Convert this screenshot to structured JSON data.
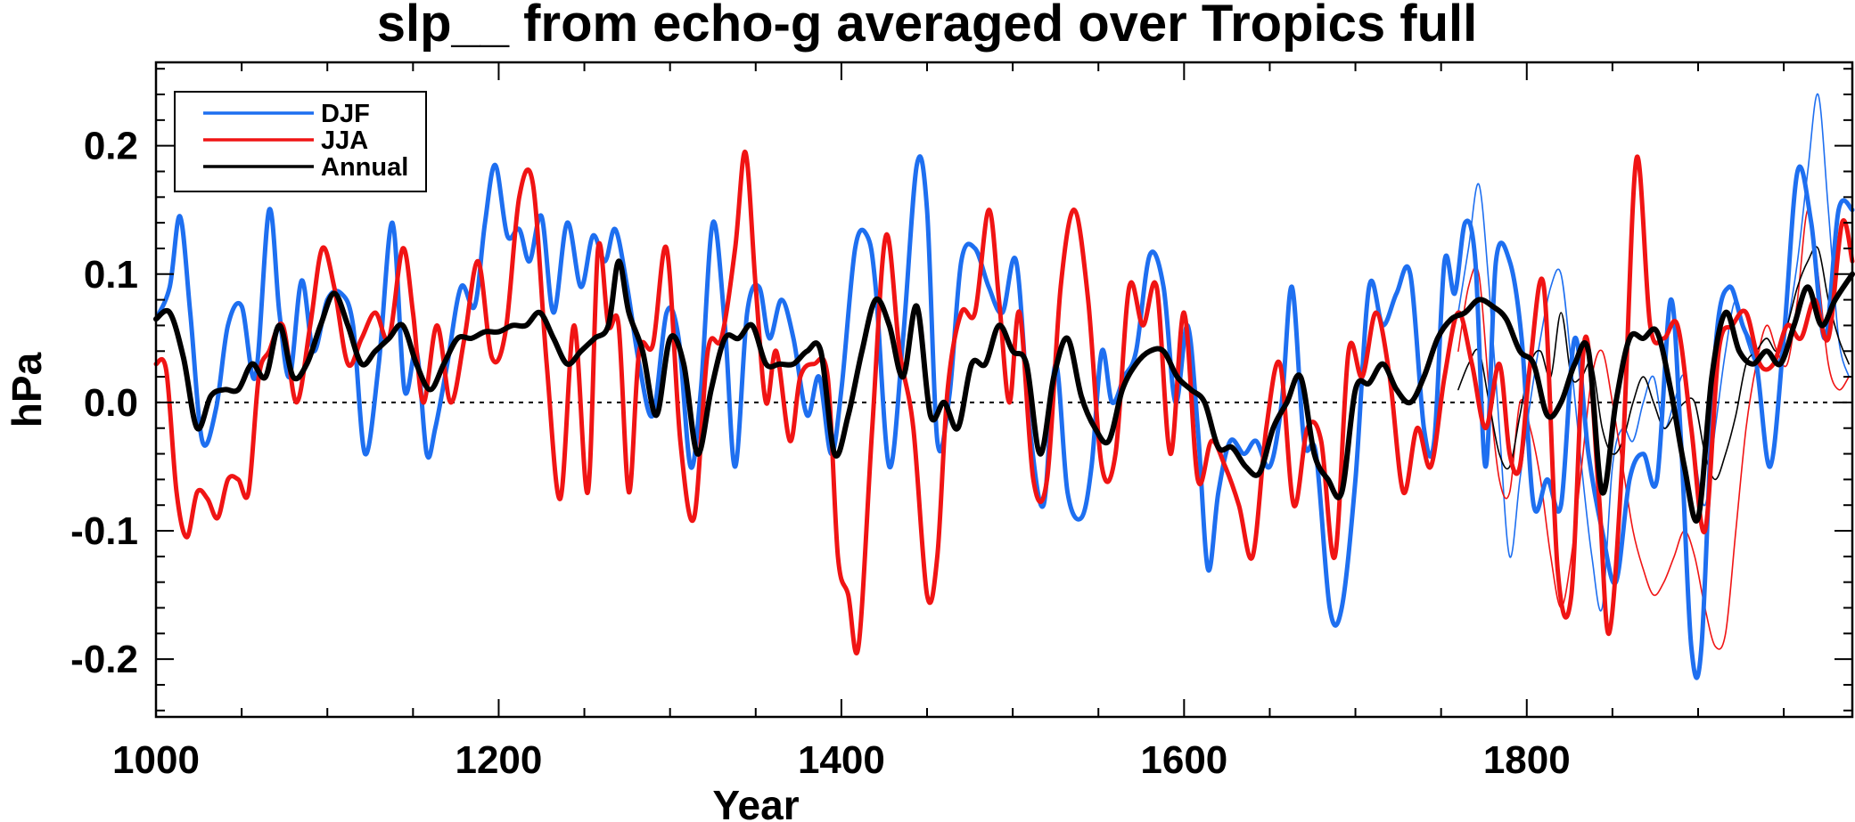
{
  "chart_data": {
    "type": "line",
    "title": "slp__ from echo-g averaged over Tropics full",
    "xlabel": "Year",
    "ylabel": "hPa",
    "xlim": [
      1000,
      1990
    ],
    "ylim": [
      -0.245,
      0.265
    ],
    "xticks": [
      1000,
      1200,
      1400,
      1600,
      1800
    ],
    "xtick_labels": [
      "1000",
      "1200",
      "1400",
      "1600",
      "1800"
    ],
    "yticks": [
      -0.2,
      -0.1,
      0.0,
      0.1,
      0.2
    ],
    "ytick_labels": [
      "-0.2",
      "-0.1",
      "0.0",
      "0.1",
      "0.2"
    ],
    "zero_line": 0.0,
    "legend_position": "top-left",
    "colors": {
      "DJF": "#1e6ff0",
      "JJA": "#f01414",
      "Annual": "#000000"
    },
    "series": [
      {
        "name": "DJF",
        "x": [
          1000,
          1008,
          1014,
          1020,
          1027,
          1035,
          1042,
          1050,
          1058,
          1066,
          1072,
          1078,
          1085,
          1092,
          1100,
          1108,
          1115,
          1122,
          1130,
          1138,
          1145,
          1152,
          1158,
          1163,
          1170,
          1178,
          1186,
          1192,
          1198,
          1205,
          1212,
          1218,
          1225,
          1232,
          1240,
          1248,
          1255,
          1262,
          1268,
          1275,
          1282,
          1290,
          1298,
          1305,
          1312,
          1318,
          1325,
          1332,
          1338,
          1345,
          1352,
          1358,
          1365,
          1372,
          1380,
          1387,
          1394,
          1400,
          1408,
          1415,
          1420,
          1428,
          1436,
          1444,
          1450,
          1456,
          1463,
          1470,
          1478,
          1486,
          1494,
          1502,
          1510,
          1518,
          1525,
          1532,
          1540,
          1546,
          1552,
          1558,
          1565,
          1572,
          1580,
          1588,
          1595,
          1602,
          1608,
          1614,
          1620,
          1627,
          1635,
          1642,
          1650,
          1657,
          1663,
          1670,
          1677,
          1685,
          1692,
          1700,
          1708,
          1716,
          1724,
          1732,
          1740,
          1746,
          1752,
          1758,
          1764,
          1770,
          1776,
          1782,
          1790,
          1797,
          1804,
          1812,
          1820,
          1828,
          1836,
          1844,
          1852,
          1860,
          1868,
          1876,
          1884,
          1890,
          1896,
          1902,
          1910,
          1918,
          1926,
          1934,
          1942,
          1950,
          1958,
          1966,
          1974,
          1982,
          1990
        ],
        "values": [
          0.065,
          0.09,
          0.145,
          0.07,
          -0.03,
          -0.005,
          0.06,
          0.075,
          0.02,
          0.15,
          0.07,
          0.02,
          0.095,
          0.04,
          0.08,
          0.085,
          0.06,
          -0.04,
          0.03,
          0.14,
          0.01,
          0.04,
          -0.04,
          -0.02,
          0.03,
          0.09,
          0.075,
          0.14,
          0.185,
          0.13,
          0.135,
          0.11,
          0.145,
          0.07,
          0.14,
          0.09,
          0.13,
          0.11,
          0.135,
          0.09,
          0.03,
          -0.01,
          0.07,
          0.05,
          -0.05,
          0.01,
          0.14,
          0.06,
          -0.05,
          0.07,
          0.09,
          0.05,
          0.08,
          0.05,
          -0.01,
          0.02,
          -0.04,
          0.01,
          0.12,
          0.13,
          0.09,
          -0.05,
          0.05,
          0.185,
          0.15,
          -0.03,
          0.005,
          0.11,
          0.12,
          0.09,
          0.07,
          0.11,
          -0.02,
          -0.08,
          0.03,
          -0.07,
          -0.09,
          -0.05,
          0.04,
          0.0,
          0.02,
          0.04,
          0.115,
          0.09,
          0.0,
          0.06,
          -0.02,
          -0.13,
          -0.07,
          -0.03,
          -0.04,
          -0.03,
          -0.05,
          0.0,
          0.09,
          -0.03,
          -0.04,
          -0.16,
          -0.16,
          -0.06,
          0.09,
          0.06,
          0.085,
          0.1,
          -0.02,
          -0.03,
          0.11,
          0.085,
          0.14,
          0.11,
          -0.05,
          0.11,
          0.11,
          0.05,
          -0.08,
          -0.06,
          -0.08,
          0.05,
          -0.04,
          -0.1,
          -0.14,
          -0.06,
          -0.04,
          -0.06,
          0.08,
          -0.03,
          -0.19,
          -0.19,
          0.04,
          0.09,
          0.06,
          0.03,
          -0.05,
          0.05,
          0.18,
          0.14,
          0.05,
          0.15,
          0.15
        ]
      },
      {
        "name": "JJA",
        "x": [
          1000,
          1006,
          1012,
          1018,
          1024,
          1030,
          1036,
          1042,
          1048,
          1054,
          1060,
          1066,
          1074,
          1082,
          1090,
          1097,
          1104,
          1112,
          1120,
          1128,
          1136,
          1144,
          1150,
          1156,
          1164,
          1172,
          1180,
          1188,
          1196,
          1204,
          1212,
          1220,
          1228,
          1236,
          1244,
          1252,
          1258,
          1264,
          1270,
          1276,
          1282,
          1290,
          1298,
          1306,
          1314,
          1322,
          1330,
          1338,
          1344,
          1350,
          1356,
          1362,
          1370,
          1376,
          1384,
          1392,
          1398,
          1404,
          1410,
          1418,
          1426,
          1434,
          1442,
          1450,
          1456,
          1462,
          1470,
          1478,
          1486,
          1492,
          1498,
          1504,
          1512,
          1520,
          1528,
          1536,
          1544,
          1552,
          1560,
          1568,
          1576,
          1584,
          1592,
          1600,
          1608,
          1616,
          1624,
          1632,
          1640,
          1648,
          1656,
          1664,
          1672,
          1680,
          1688,
          1696,
          1704,
          1712,
          1720,
          1728,
          1736,
          1744,
          1752,
          1760,
          1768,
          1776,
          1784,
          1790,
          1796,
          1802,
          1810,
          1818,
          1826,
          1834,
          1842,
          1848,
          1856,
          1864,
          1872,
          1880,
          1888,
          1896,
          1904,
          1912,
          1920,
          1928,
          1936,
          1944,
          1952,
          1960,
          1968,
          1976,
          1984,
          1990
        ],
        "values": [
          0.03,
          0.025,
          -0.07,
          -0.105,
          -0.07,
          -0.075,
          -0.09,
          -0.06,
          -0.06,
          -0.07,
          0.02,
          0.04,
          0.06,
          0.0,
          0.06,
          0.12,
          0.09,
          0.03,
          0.05,
          0.07,
          0.05,
          0.12,
          0.07,
          0.0,
          0.06,
          0.0,
          0.05,
          0.11,
          0.035,
          0.055,
          0.16,
          0.17,
          0.03,
          -0.075,
          0.06,
          -0.07,
          0.12,
          0.06,
          0.06,
          -0.07,
          0.04,
          0.045,
          0.12,
          -0.03,
          -0.09,
          0.04,
          0.05,
          0.12,
          0.195,
          0.09,
          0.0,
          0.04,
          -0.03,
          0.02,
          0.03,
          0.02,
          -0.12,
          -0.15,
          -0.19,
          -0.02,
          0.13,
          0.04,
          -0.02,
          -0.15,
          -0.12,
          0.01,
          0.07,
          0.07,
          0.15,
          0.08,
          0.0,
          0.07,
          -0.06,
          -0.06,
          0.09,
          0.15,
          0.08,
          -0.05,
          -0.04,
          0.09,
          0.06,
          0.09,
          -0.04,
          0.07,
          -0.06,
          -0.03,
          -0.05,
          -0.08,
          -0.12,
          -0.02,
          0.03,
          -0.08,
          -0.02,
          -0.03,
          -0.12,
          0.04,
          0.02,
          0.07,
          0.02,
          -0.07,
          -0.02,
          -0.05,
          0.02,
          0.07,
          0.03,
          -0.02,
          0.03,
          -0.04,
          -0.05,
          0.03,
          0.09,
          -0.13,
          -0.15,
          0.05,
          -0.07,
          -0.18,
          -0.04,
          0.19,
          0.06,
          0.05,
          0.06,
          -0.02,
          -0.1,
          0.04,
          0.06,
          0.07,
          0.03,
          0.03,
          0.06,
          0.05,
          0.08,
          0.05,
          0.14,
          0.11
        ]
      },
      {
        "name": "Annual",
        "x": [
          1000,
          1008,
          1016,
          1024,
          1032,
          1040,
          1048,
          1056,
          1064,
          1072,
          1080,
          1088,
          1096,
          1104,
          1112,
          1120,
          1128,
          1136,
          1144,
          1152,
          1160,
          1168,
          1176,
          1184,
          1192,
          1200,
          1208,
          1216,
          1224,
          1232,
          1240,
          1248,
          1256,
          1264,
          1270,
          1276,
          1284,
          1292,
          1300,
          1308,
          1316,
          1324,
          1332,
          1340,
          1348,
          1356,
          1364,
          1372,
          1380,
          1388,
          1396,
          1404,
          1412,
          1420,
          1428,
          1436,
          1444,
          1452,
          1460,
          1468,
          1476,
          1484,
          1492,
          1500,
          1508,
          1516,
          1524,
          1532,
          1540,
          1548,
          1556,
          1564,
          1572,
          1580,
          1588,
          1596,
          1604,
          1612,
          1620,
          1628,
          1636,
          1644,
          1652,
          1660,
          1668,
          1676,
          1684,
          1692,
          1700,
          1708,
          1716,
          1724,
          1732,
          1740,
          1748,
          1756,
          1764,
          1772,
          1780,
          1788,
          1796,
          1804,
          1812,
          1820,
          1828,
          1836,
          1844,
          1852,
          1860,
          1868,
          1876,
          1884,
          1892,
          1900,
          1908,
          1916,
          1924,
          1932,
          1940,
          1948,
          1956,
          1964,
          1972,
          1980,
          1990
        ],
        "values": [
          0.065,
          0.07,
          0.035,
          -0.02,
          0.005,
          0.01,
          0.01,
          0.03,
          0.02,
          0.06,
          0.02,
          0.03,
          0.06,
          0.085,
          0.06,
          0.03,
          0.04,
          0.05,
          0.06,
          0.03,
          0.01,
          0.03,
          0.05,
          0.05,
          0.055,
          0.055,
          0.06,
          0.06,
          0.07,
          0.05,
          0.03,
          0.04,
          0.05,
          0.06,
          0.11,
          0.07,
          0.04,
          -0.01,
          0.05,
          0.03,
          -0.04,
          0.01,
          0.05,
          0.05,
          0.06,
          0.03,
          0.03,
          0.03,
          0.04,
          0.04,
          -0.04,
          -0.01,
          0.04,
          0.08,
          0.06,
          0.02,
          0.075,
          -0.01,
          0.0,
          -0.02,
          0.03,
          0.03,
          0.06,
          0.04,
          0.03,
          -0.04,
          0.02,
          0.05,
          0.005,
          -0.02,
          -0.03,
          0.01,
          0.03,
          0.04,
          0.04,
          0.02,
          0.01,
          0.0,
          -0.035,
          -0.035,
          -0.05,
          -0.055,
          -0.02,
          0.0,
          0.02,
          -0.04,
          -0.06,
          -0.07,
          0.01,
          0.015,
          0.03,
          0.01,
          0.0,
          0.02,
          0.05,
          0.065,
          0.07,
          0.08,
          0.075,
          0.065,
          0.04,
          0.03,
          -0.01,
          0.0,
          0.03,
          0.04,
          -0.07,
          0.0,
          0.05,
          0.05,
          0.055,
          0.01,
          -0.05,
          -0.09,
          0.02,
          0.07,
          0.04,
          0.03,
          0.04,
          0.03,
          0.06,
          0.09,
          0.06,
          0.08,
          0.1
        ]
      }
    ],
    "thin_series": [
      {
        "name": "DJF",
        "x": [
          1760,
          1766,
          1772,
          1778,
          1784,
          1790,
          1796,
          1802,
          1808,
          1814,
          1820,
          1826,
          1832,
          1838,
          1844,
          1850,
          1856,
          1862,
          1868,
          1874,
          1880,
          1886,
          1892,
          1898,
          1904,
          1910,
          1916,
          1922,
          1928,
          1934,
          1940,
          1946,
          1952,
          1958,
          1964,
          1970,
          1976,
          1982,
          1988
        ],
        "values": [
          0.07,
          0.12,
          0.17,
          0.09,
          -0.02,
          -0.12,
          -0.06,
          0.0,
          0.05,
          0.09,
          0.1,
          0.03,
          -0.05,
          -0.12,
          -0.16,
          -0.05,
          -0.02,
          -0.03,
          0.0,
          0.02,
          -0.02,
          0.0,
          0.02,
          -0.04,
          -0.08,
          -0.02,
          0.04,
          0.08,
          0.05,
          0.03,
          0.04,
          0.03,
          0.06,
          0.11,
          0.18,
          0.24,
          0.15,
          0.05,
          0.02
        ]
      },
      {
        "name": "JJA",
        "x": [
          1760,
          1766,
          1772,
          1778,
          1784,
          1790,
          1796,
          1802,
          1808,
          1814,
          1820,
          1826,
          1832,
          1838,
          1844,
          1850,
          1856,
          1862,
          1868,
          1874,
          1880,
          1886,
          1892,
          1898,
          1904,
          1910,
          1916,
          1922,
          1928,
          1934,
          1940,
          1946,
          1952,
          1958,
          1964,
          1970,
          1976,
          1982,
          1988
        ],
        "values": [
          0.04,
          0.09,
          0.1,
          0.01,
          -0.06,
          -0.07,
          0.0,
          -0.02,
          -0.06,
          -0.12,
          -0.16,
          -0.12,
          -0.05,
          0.02,
          0.04,
          0.0,
          -0.05,
          -0.1,
          -0.13,
          -0.15,
          -0.14,
          -0.12,
          -0.1,
          -0.12,
          -0.16,
          -0.19,
          -0.18,
          -0.1,
          -0.02,
          0.03,
          0.06,
          0.04,
          0.03,
          0.08,
          0.15,
          0.1,
          0.03,
          0.01,
          0.02
        ]
      },
      {
        "name": "Annual",
        "x": [
          1760,
          1766,
          1772,
          1778,
          1784,
          1790,
          1796,
          1802,
          1808,
          1814,
          1820,
          1826,
          1832,
          1838,
          1844,
          1850,
          1856,
          1862,
          1868,
          1874,
          1880,
          1886,
          1892,
          1898,
          1904,
          1910,
          1916,
          1922,
          1928,
          1934,
          1940,
          1946,
          1952,
          1958,
          1964,
          1970,
          1976,
          1982,
          1988
        ],
        "values": [
          0.01,
          0.03,
          0.04,
          0.0,
          -0.04,
          -0.05,
          -0.01,
          0.03,
          0.04,
          0.02,
          0.07,
          0.02,
          0.02,
          0.03,
          -0.02,
          -0.04,
          -0.03,
          0.0,
          0.02,
          0.0,
          -0.02,
          -0.01,
          0.0,
          0.0,
          -0.04,
          -0.06,
          -0.04,
          -0.01,
          0.03,
          0.04,
          0.05,
          0.04,
          0.06,
          0.09,
          0.11,
          0.12,
          0.08,
          0.05,
          0.03
        ]
      }
    ]
  }
}
